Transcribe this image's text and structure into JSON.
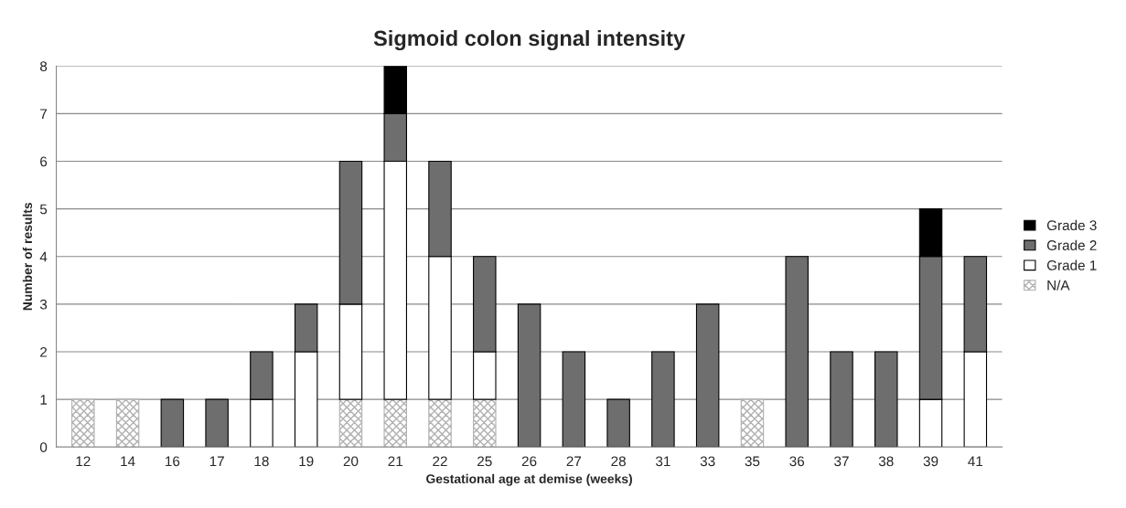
{
  "chart_data": {
    "type": "bar",
    "title": "Sigmoid colon signal intensity",
    "xlabel": "Gestational age at demise (weeks)",
    "ylabel": "Number of results",
    "categories": [
      "12",
      "14",
      "16",
      "17",
      "18",
      "19",
      "20",
      "21",
      "22",
      "25",
      "26",
      "27",
      "28",
      "31",
      "33",
      "35",
      "36",
      "37",
      "38",
      "39",
      "41"
    ],
    "stacked": true,
    "ylim": [
      0,
      8
    ],
    "yticks": [
      0,
      1,
      2,
      3,
      4,
      5,
      6,
      7,
      8
    ],
    "grid": "y",
    "legend": "right",
    "series": [
      {
        "name": "N/A",
        "color": "#b0b0b0",
        "values": [
          1,
          1,
          null,
          null,
          null,
          null,
          1,
          1,
          1,
          1,
          null,
          null,
          null,
          null,
          null,
          1,
          null,
          null,
          null,
          null,
          null
        ]
      },
      {
        "name": "Grade 1",
        "color": "#ffffff",
        "values": [
          null,
          null,
          null,
          null,
          1,
          2,
          2,
          5,
          3,
          1,
          null,
          null,
          null,
          null,
          null,
          null,
          null,
          null,
          null,
          1,
          2
        ]
      },
      {
        "name": "Grade 2",
        "color": "#6e6e6e",
        "values": [
          null,
          null,
          1,
          1,
          1,
          1,
          3,
          1,
          2,
          2,
          3,
          2,
          1,
          2,
          3,
          null,
          4,
          2,
          2,
          3,
          2
        ]
      },
      {
        "name": "Grade 3",
        "color": "#000000",
        "values": [
          null,
          null,
          null,
          null,
          null,
          null,
          null,
          1,
          null,
          null,
          null,
          null,
          null,
          null,
          null,
          null,
          null,
          null,
          null,
          1,
          null
        ]
      }
    ]
  }
}
